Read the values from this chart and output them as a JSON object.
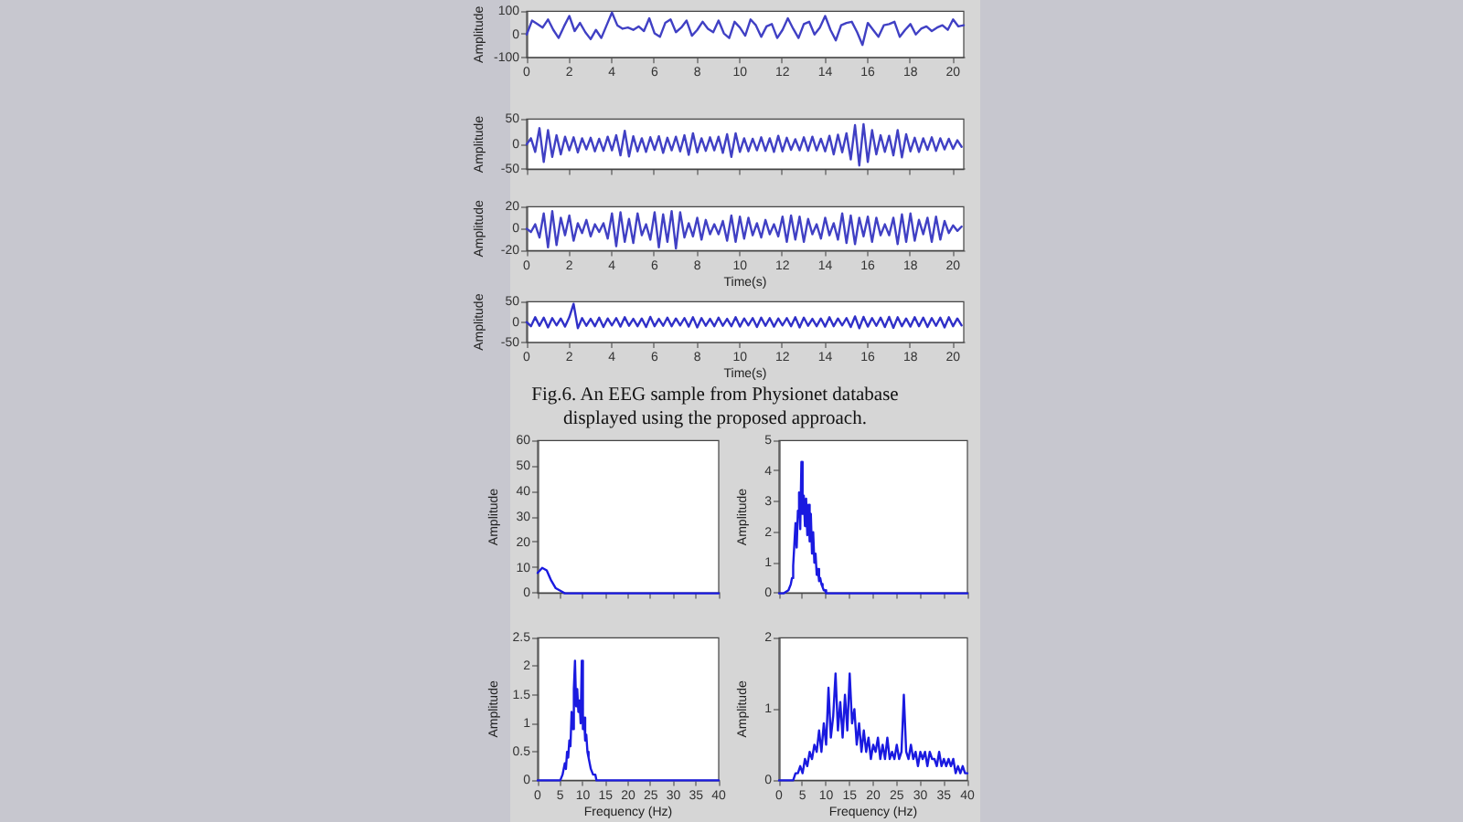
{
  "chart_data": [
    {
      "type": "line",
      "ylabel": "Amplitude",
      "color": "#4040c4",
      "xlim": [
        0,
        20.5
      ],
      "ylim": [
        -100,
        100
      ],
      "xticks": [
        0,
        2,
        4,
        6,
        8,
        10,
        12,
        14,
        16,
        18,
        20
      ],
      "yticks": [
        -100,
        0,
        100
      ],
      "x": [
        0,
        0.25,
        0.5,
        0.75,
        1,
        1.25,
        1.5,
        1.75,
        2,
        2.25,
        2.5,
        2.75,
        3,
        3.25,
        3.5,
        3.75,
        4,
        4.25,
        4.5,
        4.75,
        5,
        5.25,
        5.5,
        5.75,
        6,
        6.25,
        6.5,
        6.75,
        7,
        7.25,
        7.5,
        7.75,
        8,
        8.25,
        8.5,
        8.75,
        9,
        9.25,
        9.5,
        9.75,
        10,
        10.25,
        10.5,
        10.75,
        11,
        11.25,
        11.5,
        11.75,
        12,
        12.25,
        12.5,
        12.75,
        13,
        13.25,
        13.5,
        13.75,
        14,
        14.25,
        14.5,
        14.75,
        15,
        15.25,
        15.5,
        15.75,
        16,
        16.25,
        16.5,
        16.75,
        17,
        17.25,
        17.5,
        17.75,
        18,
        18.25,
        18.5,
        18.75,
        19,
        19.25,
        19.5,
        19.75,
        20,
        20.25,
        20.5
      ],
      "values": [
        0,
        60,
        45,
        30,
        65,
        20,
        -15,
        35,
        80,
        15,
        50,
        10,
        -20,
        20,
        -15,
        40,
        95,
        40,
        25,
        30,
        20,
        35,
        15,
        70,
        5,
        -10,
        50,
        65,
        10,
        30,
        60,
        -5,
        20,
        55,
        25,
        10,
        60,
        5,
        -15,
        55,
        30,
        -5,
        65,
        40,
        -10,
        35,
        45,
        -15,
        20,
        70,
        25,
        -15,
        45,
        55,
        0,
        30,
        80,
        20,
        -25,
        40,
        50,
        55,
        10,
        -45,
        50,
        20,
        -10,
        40,
        45,
        55,
        -10,
        20,
        45,
        0,
        25,
        35,
        15,
        30,
        40,
        20,
        65,
        35,
        40
      ]
    },
    {
      "type": "line",
      "ylabel": "Amplitude",
      "color": "#4040c4",
      "xlim": [
        0,
        20.5
      ],
      "ylim": [
        -50,
        50
      ],
      "xticks": [
        0,
        2,
        4,
        6,
        8,
        10,
        12,
        14,
        16,
        18,
        20
      ],
      "yticks": [
        -50,
        0,
        50
      ],
      "tick_labels": "y",
      "x": [
        0,
        0.2,
        0.4,
        0.6,
        0.8,
        1,
        1.2,
        1.4,
        1.6,
        1.8,
        2,
        2.2,
        2.4,
        2.6,
        2.8,
        3,
        3.2,
        3.4,
        3.6,
        3.8,
        4,
        4.2,
        4.4,
        4.6,
        4.8,
        5,
        5.2,
        5.4,
        5.6,
        5.8,
        6,
        6.2,
        6.4,
        6.6,
        6.8,
        7,
        7.2,
        7.4,
        7.6,
        7.8,
        8,
        8.2,
        8.4,
        8.6,
        8.8,
        9,
        9.2,
        9.4,
        9.6,
        9.8,
        10,
        10.2,
        10.4,
        10.6,
        10.8,
        11,
        11.2,
        11.4,
        11.6,
        11.8,
        12,
        12.2,
        12.4,
        12.6,
        12.8,
        13,
        13.2,
        13.4,
        13.6,
        13.8,
        14,
        14.2,
        14.4,
        14.6,
        14.8,
        15,
        15.2,
        15.4,
        15.6,
        15.8,
        16,
        16.2,
        16.4,
        16.6,
        16.8,
        17,
        17.2,
        17.4,
        17.6,
        17.8,
        18,
        18.2,
        18.4,
        18.6,
        18.8,
        19,
        19.2,
        19.4,
        19.6,
        19.8,
        20,
        20.2,
        20.4
      ],
      "values": [
        0,
        12,
        -15,
        32,
        -35,
        28,
        -25,
        18,
        -20,
        15,
        -12,
        14,
        -16,
        12,
        -10,
        13,
        -14,
        11,
        -13,
        15,
        -12,
        18,
        -22,
        27,
        -24,
        16,
        -14,
        12,
        -15,
        14,
        -11,
        16,
        -17,
        13,
        -12,
        15,
        -14,
        18,
        -21,
        22,
        -16,
        12,
        -13,
        14,
        -12,
        15,
        -17,
        20,
        -25,
        22,
        -15,
        12,
        -14,
        11,
        -12,
        14,
        -13,
        12,
        -15,
        17,
        -14,
        13,
        -11,
        10,
        -12,
        14,
        -13,
        15,
        -12,
        11,
        -14,
        17,
        -20,
        19,
        -16,
        22,
        -30,
        38,
        -42,
        40,
        -35,
        28,
        -20,
        18,
        -15,
        17,
        -22,
        28,
        -26,
        20,
        -14,
        13,
        -15,
        12,
        -11,
        14,
        -13,
        12,
        -10,
        11,
        -9,
        8,
        -5
      ]
    },
    {
      "type": "line",
      "xlabel": "Time(s)",
      "ylabel": "Amplitude",
      "color": "#4040c4",
      "xlim": [
        0,
        20.5
      ],
      "ylim": [
        -20,
        20
      ],
      "xticks": [
        0,
        2,
        4,
        6,
        8,
        10,
        12,
        14,
        16,
        18,
        20
      ],
      "yticks": [
        -20,
        0,
        20
      ],
      "x": [
        0,
        0.2,
        0.4,
        0.6,
        0.8,
        1,
        1.2,
        1.4,
        1.6,
        1.8,
        2,
        2.2,
        2.4,
        2.6,
        2.8,
        3,
        3.2,
        3.4,
        3.6,
        3.8,
        4,
        4.2,
        4.4,
        4.6,
        4.8,
        5,
        5.2,
        5.4,
        5.6,
        5.8,
        6,
        6.2,
        6.4,
        6.6,
        6.8,
        7,
        7.2,
        7.4,
        7.6,
        7.8,
        8,
        8.2,
        8.4,
        8.6,
        8.8,
        9,
        9.2,
        9.4,
        9.6,
        9.8,
        10,
        10.2,
        10.4,
        10.6,
        10.8,
        11,
        11.2,
        11.4,
        11.6,
        11.8,
        12,
        12.2,
        12.4,
        12.6,
        12.8,
        13,
        13.2,
        13.4,
        13.6,
        13.8,
        14,
        14.2,
        14.4,
        14.6,
        14.8,
        15,
        15.2,
        15.4,
        15.6,
        15.8,
        16,
        16.2,
        16.4,
        16.6,
        16.8,
        17,
        17.2,
        17.4,
        17.6,
        17.8,
        18,
        18.2,
        18.4,
        18.6,
        18.8,
        19,
        19.2,
        19.4,
        19.6,
        19.8,
        20,
        20.2,
        20.4
      ],
      "values": [
        0,
        -3,
        4,
        -8,
        14,
        -17,
        16,
        -15,
        10,
        -6,
        12,
        -11,
        5,
        -4,
        8,
        -7,
        4,
        -3,
        5,
        -9,
        14,
        -16,
        15,
        -12,
        9,
        -13,
        14,
        -6,
        4,
        -10,
        15,
        -17,
        13,
        -12,
        16,
        -18,
        15,
        -8,
        5,
        -7,
        10,
        -10,
        8,
        -5,
        4,
        -5,
        7,
        -11,
        12,
        -12,
        11,
        -9,
        10,
        -6,
        5,
        -8,
        8,
        -5,
        4,
        -7,
        11,
        -12,
        12,
        -10,
        11,
        -12,
        9,
        -5,
        4,
        -9,
        10,
        -6,
        5,
        -10,
        14,
        -13,
        12,
        -14,
        10,
        -7,
        11,
        -12,
        10,
        -6,
        4,
        -6,
        10,
        -14,
        13,
        -12,
        14,
        -11,
        8,
        -5,
        10,
        -12,
        11,
        -10,
        7,
        -4,
        3,
        -2,
        2
      ]
    },
    {
      "type": "line",
      "xlabel": "Time(s)",
      "ylabel": "Amplitude",
      "color": "#3030c8",
      "xlim": [
        0,
        20.5
      ],
      "ylim": [
        -50,
        50
      ],
      "xticks": [
        0,
        2,
        4,
        6,
        8,
        10,
        12,
        14,
        16,
        18,
        20
      ],
      "yticks": [
        -50,
        0,
        50
      ],
      "annotations": [
        "Fig.6. An EEG sample from Physionet database displayed using the proposed approach."
      ],
      "x": [
        0,
        0.2,
        0.4,
        0.6,
        0.8,
        1,
        1.2,
        1.4,
        1.6,
        1.8,
        2,
        2.2,
        2.4,
        2.6,
        2.8,
        3,
        3.2,
        3.4,
        3.6,
        3.8,
        4,
        4.2,
        4.4,
        4.6,
        4.8,
        5,
        5.2,
        5.4,
        5.6,
        5.8,
        6,
        6.2,
        6.4,
        6.6,
        6.8,
        7,
        7.2,
        7.4,
        7.6,
        7.8,
        8,
        8.2,
        8.4,
        8.6,
        8.8,
        9,
        9.2,
        9.4,
        9.6,
        9.8,
        10,
        10.2,
        10.4,
        10.6,
        10.8,
        11,
        11.2,
        11.4,
        11.6,
        11.8,
        12,
        12.2,
        12.4,
        12.6,
        12.8,
        13,
        13.2,
        13.4,
        13.6,
        13.8,
        14,
        14.2,
        14.4,
        14.6,
        14.8,
        15,
        15.2,
        15.4,
        15.6,
        15.8,
        16,
        16.2,
        16.4,
        16.6,
        16.8,
        17,
        17.2,
        17.4,
        17.6,
        17.8,
        18,
        18.2,
        18.4,
        18.6,
        18.8,
        19,
        19.2,
        19.4,
        19.6,
        19.8,
        20,
        20.2,
        20.4
      ],
      "values": [
        0,
        -10,
        12,
        -9,
        11,
        -13,
        10,
        -8,
        9,
        -11,
        12,
        45,
        -15,
        10,
        -9,
        8,
        -10,
        11,
        -12,
        9,
        -8,
        10,
        -11,
        12,
        -9,
        8,
        -10,
        9,
        -12,
        13,
        -10,
        8,
        -9,
        11,
        -10,
        9,
        -8,
        10,
        -11,
        12,
        -13,
        10,
        -9,
        8,
        -10,
        11,
        -9,
        8,
        -10,
        12,
        -11,
        9,
        -8,
        10,
        -12,
        11,
        -9,
        10,
        -11,
        9,
        -8,
        10,
        -10,
        12,
        -13,
        11,
        -9,
        8,
        -10,
        9,
        -11,
        12,
        -10,
        9,
        -8,
        10,
        -12,
        14,
        -15,
        13,
        -11,
        10,
        -9,
        11,
        -12,
        13,
        -14,
        12,
        -10,
        9,
        -11,
        12,
        -10,
        11,
        -12,
        10,
        -9,
        11,
        -13,
        12,
        -10,
        9,
        -8
      ]
    },
    {
      "type": "line",
      "ylabel": "Amplitude",
      "color": "#1a1ae0",
      "xlim": [
        0,
        40
      ],
      "ylim": [
        0,
        60
      ],
      "xticks": [
        0,
        5,
        10,
        15,
        20,
        25,
        30,
        35,
        40
      ],
      "yticks": [
        0,
        10,
        20,
        30,
        40,
        50,
        60
      ],
      "tick_labels": "y",
      "x": [
        0,
        1,
        2,
        3,
        4,
        5,
        6,
        10,
        15,
        20,
        25,
        30,
        35,
        40
      ],
      "values": [
        8,
        10,
        9,
        5,
        2,
        1,
        0,
        0,
        0,
        0,
        0,
        0,
        0,
        0
      ]
    },
    {
      "type": "line",
      "ylabel": "Amplitude",
      "color": "#1a1ae0",
      "xlim": [
        0,
        40
      ],
      "ylim": [
        0,
        5
      ],
      "xticks": [
        0,
        5,
        10,
        15,
        20,
        25,
        30,
        35,
        40
      ],
      "yticks": [
        0,
        1,
        2,
        3,
        4,
        5
      ],
      "tick_labels": "y",
      "x": [
        0,
        1,
        2,
        2.25,
        2.5,
        2.75,
        3,
        3.25,
        3.5,
        3.75,
        4,
        4.25,
        4.5,
        4.75,
        5,
        5.25,
        5.5,
        5.75,
        6,
        6.25,
        6.5,
        6.75,
        7,
        7.25,
        7.5,
        7.75,
        8,
        8.25,
        8.5,
        8.75,
        9,
        9.25,
        9.5,
        9.75,
        10,
        11,
        12,
        14,
        16,
        20,
        25,
        30,
        35,
        40
      ],
      "values": [
        0,
        0,
        0.1,
        0.1,
        0.3,
        0.5,
        0.9,
        1.6,
        2.3,
        1.5,
        2.7,
        3.3,
        2.1,
        4.3,
        2.6,
        3.2,
        2.2,
        3.1,
        1.9,
        2.9,
        1.7,
        2.6,
        1.3,
        2,
        1,
        1.3,
        0.6,
        0.8,
        0.4,
        0.5,
        0.3,
        0.2,
        0.1,
        0.1,
        0,
        0,
        0,
        0,
        0,
        0,
        0,
        0,
        0,
        0
      ]
    },
    {
      "type": "line",
      "xlabel": "Frequency (Hz)",
      "ylabel": "Amplitude",
      "color": "#1a1ae0",
      "xlim": [
        0,
        40
      ],
      "ylim": [
        0,
        2.5
      ],
      "xticks": [
        0,
        5,
        10,
        15,
        20,
        25,
        30,
        35,
        40
      ],
      "yticks": [
        0,
        0.5,
        1,
        1.5,
        2,
        2.5
      ],
      "x": [
        0,
        2,
        4,
        5,
        5.5,
        6,
        6.25,
        6.5,
        6.75,
        7,
        7.25,
        7.5,
        7.75,
        8,
        8.25,
        8.5,
        8.75,
        9,
        9.25,
        9.5,
        9.75,
        10,
        10.25,
        10.5,
        10.75,
        11,
        11.25,
        11.5,
        11.75,
        12,
        12.25,
        12.5,
        12.75,
        13,
        14,
        16,
        20,
        25,
        30,
        35,
        40
      ],
      "values": [
        0,
        0,
        0,
        0,
        0.1,
        0.3,
        0.2,
        0.5,
        0.4,
        0.7,
        0.6,
        1.2,
        0.9,
        1.6,
        2.1,
        1.3,
        1.6,
        1.2,
        1.4,
        1,
        2.1,
        0.9,
        1.1,
        0.7,
        0.8,
        0.5,
        0.4,
        0.3,
        0.2,
        0.2,
        0.1,
        0.1,
        0.1,
        0,
        0,
        0,
        0,
        0,
        0,
        0,
        0
      ]
    },
    {
      "type": "line",
      "xlabel": "Frequency (Hz)",
      "ylabel": "Amplitude",
      "color": "#1a1ae0",
      "xlim": [
        0,
        40
      ],
      "ylim": [
        0,
        2
      ],
      "xticks": [
        0,
        5,
        10,
        15,
        20,
        25,
        30,
        35,
        40
      ],
      "yticks": [
        0,
        1,
        2
      ],
      "x": [
        0,
        0.5,
        1,
        1.5,
        2,
        2.5,
        3,
        3.5,
        4,
        4.5,
        5,
        5.5,
        6,
        6.5,
        7,
        7.5,
        8,
        8.5,
        9,
        9.5,
        10,
        10.5,
        11,
        11.5,
        12,
        12.5,
        13,
        13.5,
        14,
        14.5,
        15,
        15.5,
        16,
        16.5,
        17,
        17.5,
        18,
        18.5,
        19,
        19.5,
        20,
        20.5,
        21,
        21.5,
        22,
        22.5,
        23,
        23.5,
        24,
        24.5,
        25,
        25.5,
        26,
        26.5,
        27,
        27.5,
        28,
        28.5,
        29,
        29.5,
        30,
        30.5,
        31,
        31.5,
        32,
        32.5,
        33,
        33.5,
        34,
        34.5,
        35,
        35.5,
        36,
        36.5,
        37,
        37.5,
        38,
        38.5,
        39,
        39.5,
        40
      ],
      "values": [
        0,
        0,
        0,
        0,
        0,
        0,
        0,
        0.1,
        0.1,
        0.2,
        0.1,
        0.3,
        0.2,
        0.4,
        0.3,
        0.5,
        0.4,
        0.7,
        0.4,
        0.8,
        0.5,
        1.3,
        0.6,
        0.9,
        1.5,
        0.7,
        1.1,
        0.6,
        1.2,
        0.7,
        1.5,
        0.8,
        1,
        0.5,
        0.8,
        0.4,
        0.7,
        0.4,
        0.6,
        0.3,
        0.5,
        0.4,
        0.6,
        0.3,
        0.5,
        0.3,
        0.6,
        0.3,
        0.4,
        0.3,
        0.5,
        0.3,
        0.4,
        1.2,
        0.4,
        0.3,
        0.5,
        0.3,
        0.4,
        0.2,
        0.4,
        0.3,
        0.4,
        0.2,
        0.4,
        0.3,
        0.3,
        0.2,
        0.4,
        0.2,
        0.3,
        0.2,
        0.3,
        0.2,
        0.3,
        0.1,
        0.2,
        0.1,
        0.2,
        0.1,
        0.1
      ]
    }
  ]
}
